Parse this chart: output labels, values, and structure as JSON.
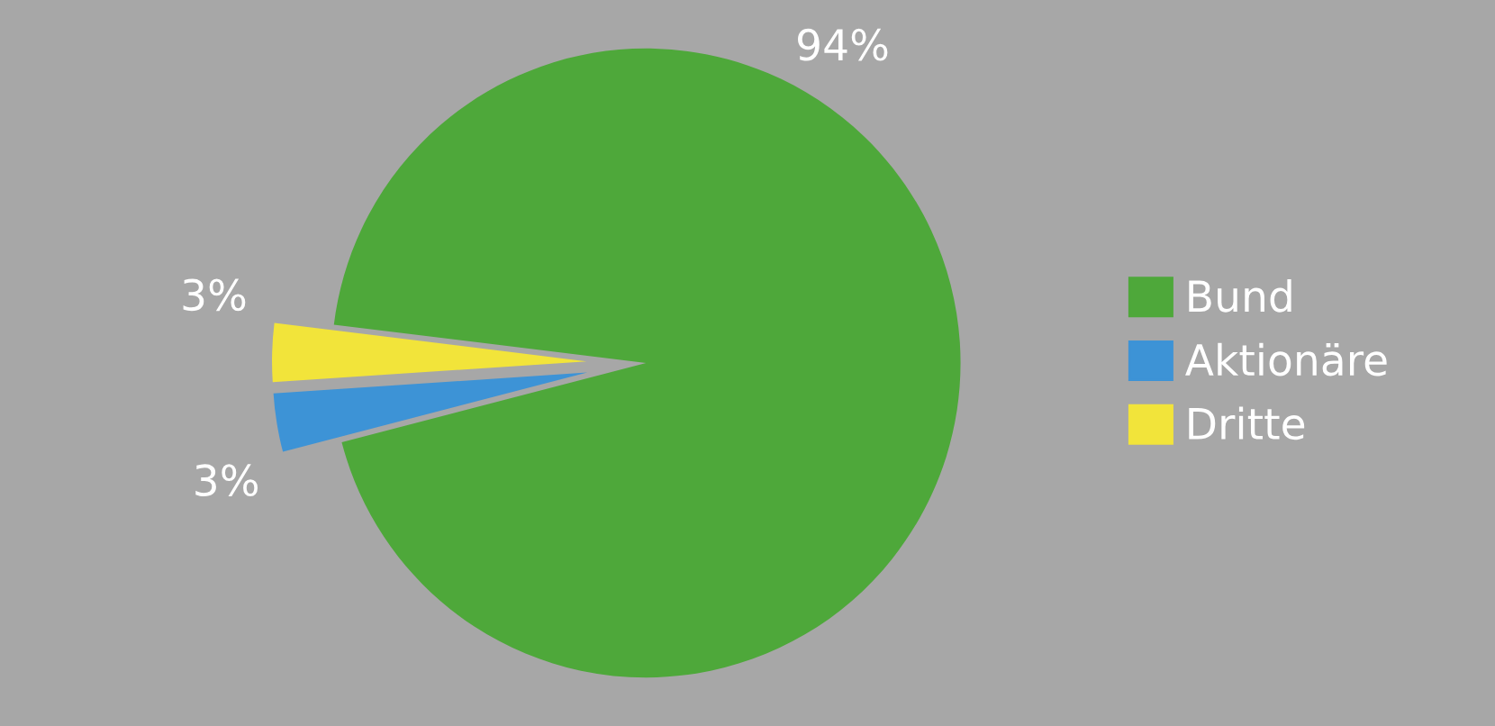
{
  "chart_data": {
    "type": "pie",
    "categories": [
      "Bund",
      "Aktionäre",
      "Dritte"
    ],
    "values": [
      94,
      3,
      3
    ],
    "colors": [
      "#4ea83a",
      "#3d93d6",
      "#f2e43a"
    ],
    "value_labels": [
      "94%",
      "3%",
      "3%"
    ],
    "legend": "right"
  }
}
